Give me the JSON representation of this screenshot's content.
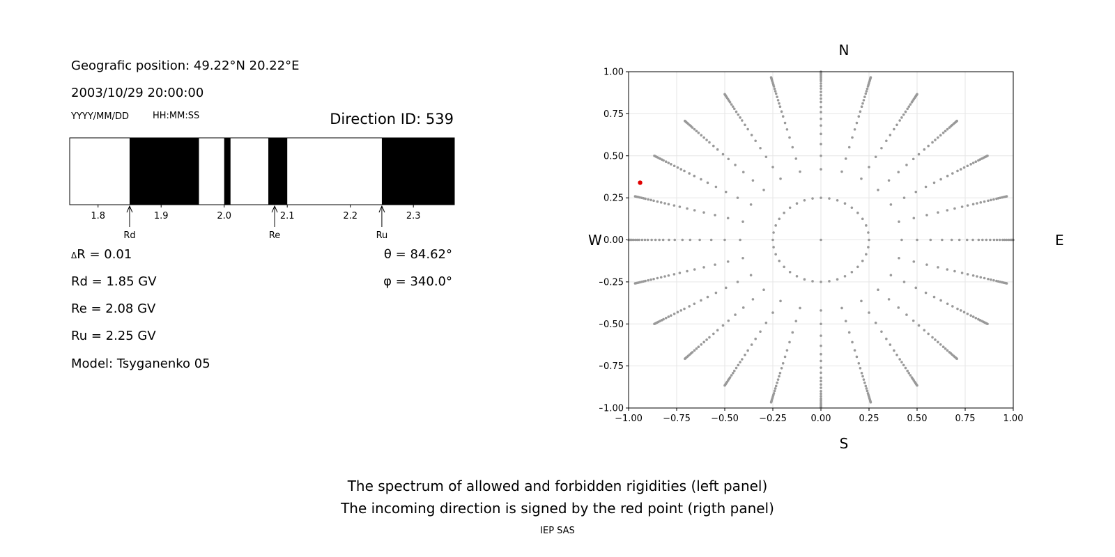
{
  "info": {
    "position": "Geografic position: 49.22°N 20.22°E",
    "datetime": "2003/10/29 20:00:00",
    "date_format": "YYYY/MM/DD",
    "time_format": "HH:MM:SS",
    "direction_id": "Direction ID: 539"
  },
  "params": {
    "delta_r": "R = 0.01",
    "delta_symbol": "Δ",
    "rd": "Rd = 1.85 GV",
    "re": "Re = 2.08 GV",
    "ru": "Ru = 2.25 GV",
    "model": "Model: Tsyganenko 05",
    "theta": "θ = 84.62°",
    "phi": "φ = 340.0°"
  },
  "compass": {
    "n": "N",
    "s": "S",
    "w": "W",
    "e": "E"
  },
  "caption": {
    "line1": "The spectrum of allowed and forbidden rigidities (left panel)",
    "line2": "The incoming direction is signed by the red point (rigth panel)",
    "credit": "IEP SAS"
  },
  "colors": {
    "forbidden": "#000000",
    "allowed": "#ffffff",
    "grid_point": "#999999",
    "direction": "#e00000"
  },
  "chart_data": [
    {
      "type": "bar",
      "kind": "rigidity-spectrum",
      "xlim": [
        1.755,
        2.365
      ],
      "xticks": [
        1.8,
        1.9,
        2.0,
        2.1,
        2.2,
        2.3
      ],
      "xtick_labels": [
        "1.8",
        "1.9",
        "2.0",
        "2.1",
        "2.2",
        "2.3"
      ],
      "forbidden_intervals": [
        [
          1.85,
          1.96
        ],
        [
          2.0,
          2.01
        ],
        [
          2.07,
          2.1
        ],
        [
          2.25,
          2.365
        ]
      ],
      "markers": [
        {
          "label": "Rd",
          "value": 1.85
        },
        {
          "label": "Re",
          "value": 2.08
        },
        {
          "label": "Ru",
          "value": 2.25
        }
      ]
    },
    {
      "type": "scatter",
      "kind": "direction-grid",
      "xlim": [
        -1.0,
        1.0
      ],
      "ylim": [
        -1.0,
        1.0
      ],
      "xticks": [
        -1.0,
        -0.75,
        -0.5,
        -0.25,
        0.0,
        0.25,
        0.5,
        0.75,
        1.0
      ],
      "xtick_labels": [
        "−1.00",
        "−0.75",
        "−0.50",
        "−0.25",
        "0.00",
        "0.25",
        "0.50",
        "0.75",
        "1.00"
      ],
      "yticks": [
        1.0,
        0.75,
        0.5,
        0.25,
        0.0,
        -0.25,
        -0.5,
        -0.75,
        -1.0
      ],
      "ytick_labels": [
        "1.00",
        "0.75",
        "0.50",
        "0.25",
        "0.00",
        "−0.25",
        "−0.50",
        "−0.75",
        "−1.00"
      ],
      "grid": true,
      "rings": [
        {
          "radius": 0.25,
          "count": 36
        },
        {
          "radius": 0.42,
          "count": 24
        }
      ],
      "spokes": {
        "count": 24,
        "radii": [
          0.5,
          0.57,
          0.63,
          0.68,
          0.72,
          0.76,
          0.79,
          0.82,
          0.84,
          0.86,
          0.88,
          0.9,
          0.915,
          0.93,
          0.945,
          0.955,
          0.965,
          0.975,
          0.983,
          0.99,
          0.996,
          1.0
        ]
      },
      "center_point": [
        0.0,
        0.0
      ],
      "highlight": {
        "x": -0.94,
        "y": 0.34
      }
    }
  ]
}
